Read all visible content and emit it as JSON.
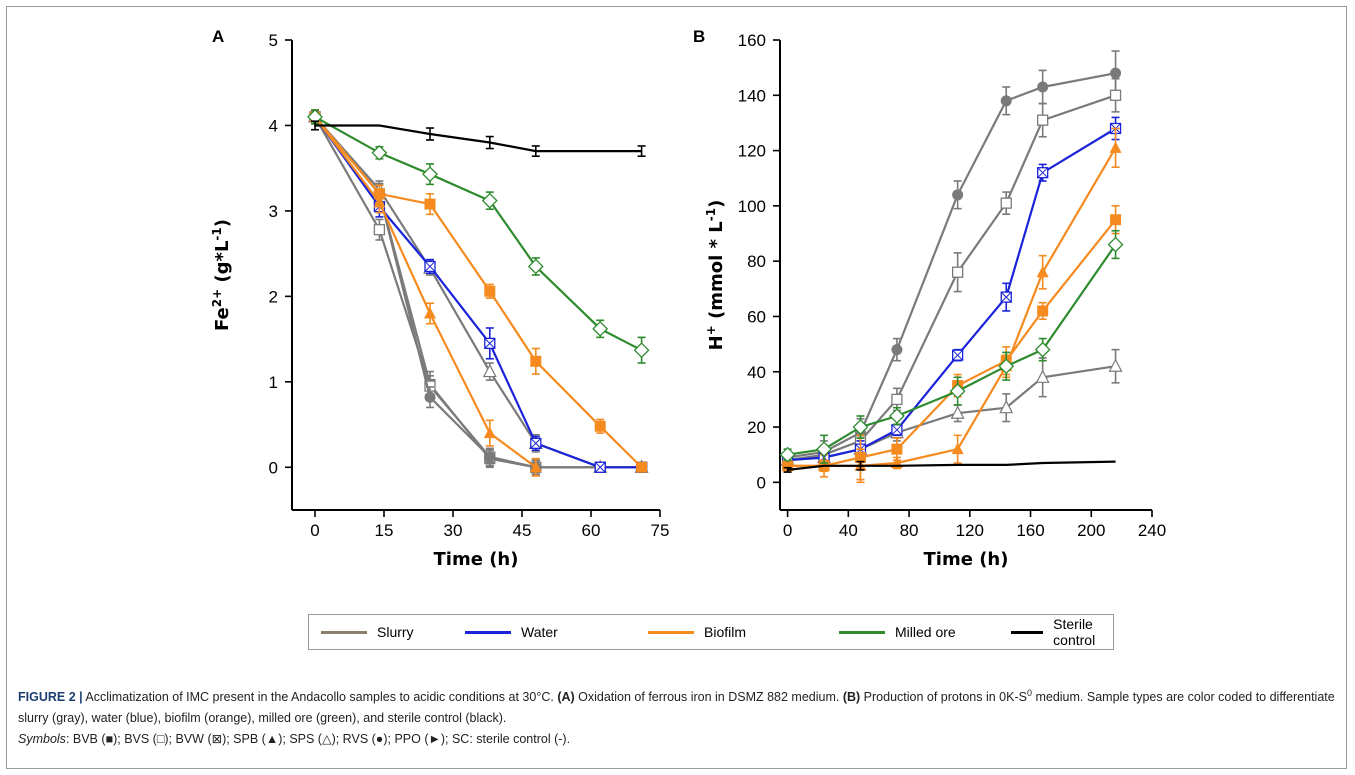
{
  "caption": {
    "figure_label": "FIGURE 2 |",
    "text_1": " Acclimatization of IMC present in the Andacollo samples to acidic conditions at 30°C. ",
    "a_label": "(A)",
    "text_2": " Oxidation of ferrous iron in DSMZ 882 medium. ",
    "b_label": "(B)",
    "text_3": " Production of protons in 0K-S",
    "sup": "0",
    "text_4": " medium. Sample types are color coded to differentiate slurry (gray), water (blue), biofilm (orange), milled ore (green), and sterile control (black).",
    "symbols_label": "Symbols",
    "symbols_text": ": BVB (■); BVS (□); BVW (⊠); SPB (▲); SPS (△); RVS (●); PPO (►); SC: sterile control (-)."
  },
  "legend": [
    {
      "label": "Slurry",
      "color": "#8c7f6e"
    },
    {
      "label": "Water",
      "color": "#1a23d8"
    },
    {
      "label": "Biofilm",
      "color": "#f58a1f"
    },
    {
      "label": "Milled ore",
      "color": "#2e8b2e"
    },
    {
      "label": "Sterile control",
      "color": "#000000"
    }
  ],
  "chart_data": [
    {
      "panel": "A",
      "type": "line",
      "ylabel_main": "Fe",
      "ylabel_sup": "2+",
      "ylabel_rest": " (g*L",
      "ylabel_sup2": "-1",
      "ylabel_end": ")",
      "xlabel": "Time (h)",
      "xlim": [
        -5,
        75
      ],
      "ylim": [
        -0.5,
        5
      ],
      "xticks": [
        0,
        15,
        30,
        45,
        60,
        75
      ],
      "yticks": [
        0,
        1,
        2,
        3,
        4,
        5
      ],
      "series": [
        {
          "name": "BVB",
          "group": "Slurry",
          "color": "#7a7a7a",
          "marker": "square-filled",
          "x": [
            0,
            14,
            25,
            38,
            48,
            62,
            71
          ],
          "y": [
            4.1,
            3.2,
            0.97,
            0.1,
            0.0,
            0.0,
            0.0
          ],
          "err": [
            0.08,
            0.12,
            0.15,
            0.1,
            0.08,
            0.04,
            0.04
          ]
        },
        {
          "name": "BVS",
          "group": "Slurry",
          "color": "#7a7a7a",
          "marker": "square-open",
          "x": [
            0,
            14,
            25,
            38,
            48,
            62,
            71
          ],
          "y": [
            4.1,
            2.78,
            0.95,
            0.12,
            0.0,
            0.0,
            0.0
          ],
          "err": [
            0.08,
            0.12,
            0.12,
            0.1,
            0.08,
            0.04,
            0.04
          ]
        },
        {
          "name": "RVS",
          "group": "Slurry",
          "color": "#7a7a7a",
          "marker": "circle-filled",
          "x": [
            0,
            14,
            25,
            38,
            48,
            62,
            71
          ],
          "y": [
            4.1,
            3.2,
            0.82,
            0.12,
            0.0,
            0.0,
            0.0
          ],
          "err": [
            0.08,
            0.12,
            0.12,
            0.1,
            0.1,
            0.04,
            0.04
          ]
        },
        {
          "name": "SPS",
          "group": "Slurry",
          "color": "#7a7a7a",
          "marker": "triangle-open",
          "x": [
            0,
            14,
            25,
            38,
            48,
            62,
            71
          ],
          "y": [
            4.1,
            3.25,
            2.33,
            1.12,
            0.28,
            0.0,
            0.0
          ],
          "err": [
            0.08,
            0.1,
            0.08,
            0.1,
            0.1,
            0.04,
            0.04
          ]
        },
        {
          "name": "BVW",
          "group": "Water",
          "color": "#1a23d8",
          "marker": "square-x",
          "x": [
            0,
            14,
            25,
            38,
            48,
            62,
            71
          ],
          "y": [
            4.1,
            3.05,
            2.35,
            1.45,
            0.28,
            0.0,
            0.0
          ],
          "err": [
            0.08,
            0.12,
            0.08,
            0.18,
            0.08,
            0.04,
            0.04
          ]
        },
        {
          "name": "SPB",
          "group": "Biofilm",
          "color": "#f58a1f",
          "marker": "triangle-filled",
          "x": [
            0,
            14,
            25,
            38,
            48
          ],
          "y": [
            4.1,
            3.1,
            1.8,
            0.4,
            0.0
          ],
          "err": [
            0.08,
            0.12,
            0.12,
            0.15,
            0.1
          ]
        },
        {
          "name": "BVB",
          "group": "Biofilm",
          "color": "#f58a1f",
          "marker": "square-filled",
          "x": [
            0,
            14,
            25,
            38,
            48,
            62,
            71
          ],
          "y": [
            4.1,
            3.2,
            3.08,
            2.06,
            1.24,
            0.48,
            0.0
          ],
          "err": [
            0.08,
            0.1,
            0.12,
            0.08,
            0.15,
            0.08,
            0.04
          ]
        },
        {
          "name": "PPO",
          "group": "Milled ore",
          "color": "#2e8b2e",
          "marker": "diamond-open",
          "x": [
            0,
            14,
            25,
            38,
            48,
            62,
            71
          ],
          "y": [
            4.1,
            3.68,
            3.43,
            3.12,
            2.35,
            1.62,
            1.37
          ],
          "err": [
            0.08,
            0.07,
            0.12,
            0.1,
            0.1,
            0.1,
            0.15
          ]
        },
        {
          "name": "SC",
          "group": "Sterile control",
          "color": "#000000",
          "marker": "none",
          "x": [
            0,
            14,
            25,
            38,
            48,
            62,
            71
          ],
          "y": [
            4.0,
            4.0,
            3.9,
            3.8,
            3.7,
            3.7,
            3.7
          ],
          "err": [
            0.05,
            0.0,
            0.07,
            0.07,
            0.06,
            0.0,
            0.06
          ]
        }
      ]
    },
    {
      "panel": "B",
      "type": "line",
      "ylabel_main": "H",
      "ylabel_sup": "+",
      "ylabel_rest": " (mmol * L",
      "ylabel_sup2": "-1",
      "ylabel_end": ")",
      "xlabel": "Time (h)",
      "xlim": [
        -5,
        240
      ],
      "ylim": [
        -10,
        160
      ],
      "xticks": [
        0,
        40,
        80,
        120,
        160,
        200,
        240
      ],
      "yticks": [
        0,
        20,
        40,
        60,
        80,
        100,
        120,
        140,
        160
      ],
      "series": [
        {
          "name": "RVS",
          "group": "Slurry",
          "color": "#7a7a7a",
          "marker": "circle-filled",
          "x": [
            0,
            24,
            48,
            72,
            112,
            144,
            168,
            216
          ],
          "y": [
            9,
            11,
            18,
            48,
            104,
            138,
            143,
            148
          ],
          "err": [
            2,
            4,
            5,
            4,
            5,
            5,
            6,
            8
          ]
        },
        {
          "name": "BVS",
          "group": "Slurry",
          "color": "#7a7a7a",
          "marker": "square-open",
          "x": [
            0,
            24,
            48,
            72,
            112,
            144,
            168,
            216
          ],
          "y": [
            8,
            10,
            15,
            30,
            76,
            101,
            131,
            140
          ],
          "err": [
            2,
            3,
            5,
            4,
            7,
            4,
            6,
            6
          ]
        },
        {
          "name": "SPS",
          "group": "Slurry",
          "color": "#7a7a7a",
          "marker": "triangle-open",
          "x": [
            0,
            24,
            48,
            72,
            112,
            144,
            168,
            216
          ],
          "y": [
            8,
            9,
            12,
            18,
            25,
            27,
            38,
            42
          ],
          "err": [
            2,
            3,
            4,
            3,
            3,
            5,
            7,
            6
          ]
        },
        {
          "name": "BVW",
          "group": "Water",
          "color": "#1a23d8",
          "marker": "square-x",
          "x": [
            0,
            24,
            48,
            72,
            112,
            144,
            168,
            216
          ],
          "y": [
            8,
            9,
            12,
            19,
            46,
            67,
            112,
            128
          ],
          "err": [
            2,
            3,
            3,
            2,
            2,
            5,
            3,
            4
          ]
        },
        {
          "name": "SPB",
          "group": "Biofilm",
          "color": "#f58a1f",
          "marker": "triangle-filled",
          "x": [
            0,
            24,
            48,
            72,
            112,
            144,
            168,
            216
          ],
          "y": [
            6,
            6,
            6,
            7,
            12,
            42,
            76,
            121
          ],
          "err": [
            2,
            2,
            6,
            2,
            5,
            4,
            6,
            7
          ]
        },
        {
          "name": "BVB",
          "group": "Biofilm",
          "color": "#f58a1f",
          "marker": "square-filled",
          "x": [
            0,
            24,
            48,
            72,
            112,
            144,
            168,
            216
          ],
          "y": [
            6,
            6,
            9,
            12,
            35,
            44,
            62,
            95
          ],
          "err": [
            2,
            4,
            8,
            4,
            4,
            5,
            3,
            5
          ]
        },
        {
          "name": "PPO",
          "group": "Milled ore",
          "color": "#2e8b2e",
          "marker": "diamond-open",
          "x": [
            0,
            24,
            48,
            72,
            112,
            144,
            168,
            216
          ],
          "y": [
            10,
            12,
            20,
            24,
            33,
            42,
            48,
            86
          ],
          "err": [
            2,
            5,
            4,
            3,
            5,
            5,
            4,
            5
          ]
        },
        {
          "name": "SC",
          "group": "Sterile control",
          "color": "#000000",
          "marker": "none",
          "x": [
            0,
            24,
            48,
            72,
            112,
            144,
            168,
            216
          ],
          "y": [
            4.5,
            6,
            6,
            6,
            6.3,
            6.3,
            7,
            7.5
          ],
          "err": [
            0.8,
            0,
            1.5,
            0,
            0,
            0,
            0,
            0
          ]
        }
      ]
    }
  ]
}
